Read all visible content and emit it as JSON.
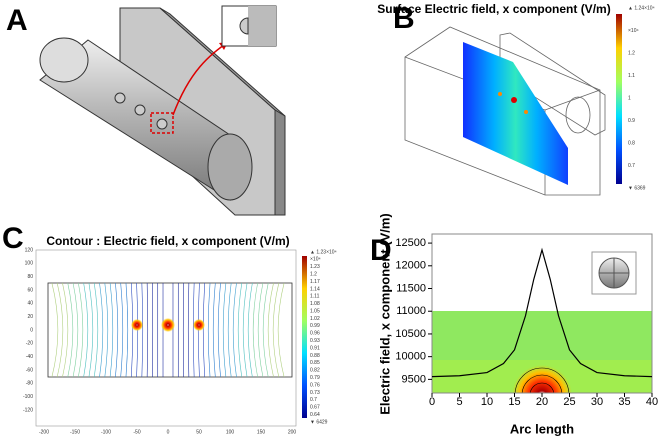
{
  "panels": [
    {
      "label": "A"
    },
    {
      "label": "B",
      "title": "Surface Electric field, x component (V/m)",
      "colorbar": [
        "▲ 1.24×10⁴",
        "×10⁴",
        "1.2",
        "1.1",
        "1",
        "0.9",
        "0.8",
        "0.7",
        "▼ 6369"
      ]
    },
    {
      "label": "C",
      "title": "Contour : Electric field, x component (V/m)",
      "xticks": [
        "-200",
        "-150",
        "-100",
        "-50",
        "0",
        "50",
        "100",
        "150",
        "200"
      ],
      "yticks": [
        "120",
        "100",
        "80",
        "60",
        "40",
        "20",
        "0",
        "-20",
        "-40",
        "-60",
        "-80",
        "-100",
        "-120"
      ],
      "colorbar": [
        "▲ 1.23×10⁴",
        "×10⁴",
        "1.23",
        "1.2",
        "1.17",
        "1.14",
        "1.11",
        "1.08",
        "1.05",
        "1.02",
        "0.99",
        "0.96",
        "0.93",
        "0.91",
        "0.88",
        "0.85",
        "0.82",
        "0.79",
        "0.76",
        "0.73",
        "0.7",
        "0.67",
        "0.64",
        "▼ 6429"
      ]
    },
    {
      "label": "D"
    }
  ],
  "chart_data": {
    "type": "line",
    "xlabel": "Arc length",
    "ylabel": "Electric field, x component (V/m)",
    "x": [
      0,
      5,
      10,
      13,
      15,
      17,
      18.5,
      20,
      21.5,
      23,
      25,
      27,
      30,
      35,
      40
    ],
    "series": [
      {
        "color": "#000000",
        "values": [
          9560,
          9580,
          9650,
          9850,
          10150,
          10900,
          11700,
          12350,
          11700,
          10900,
          10150,
          9850,
          9650,
          9580,
          9560
        ]
      }
    ],
    "xlim": [
      0,
      40
    ],
    "xticks": [
      0,
      5,
      10,
      15,
      20,
      25,
      30,
      35,
      40
    ],
    "ylim": [
      9200,
      12700
    ],
    "yticks": [
      9500,
      10000,
      10500,
      11000,
      11500,
      12000,
      12500
    ]
  }
}
